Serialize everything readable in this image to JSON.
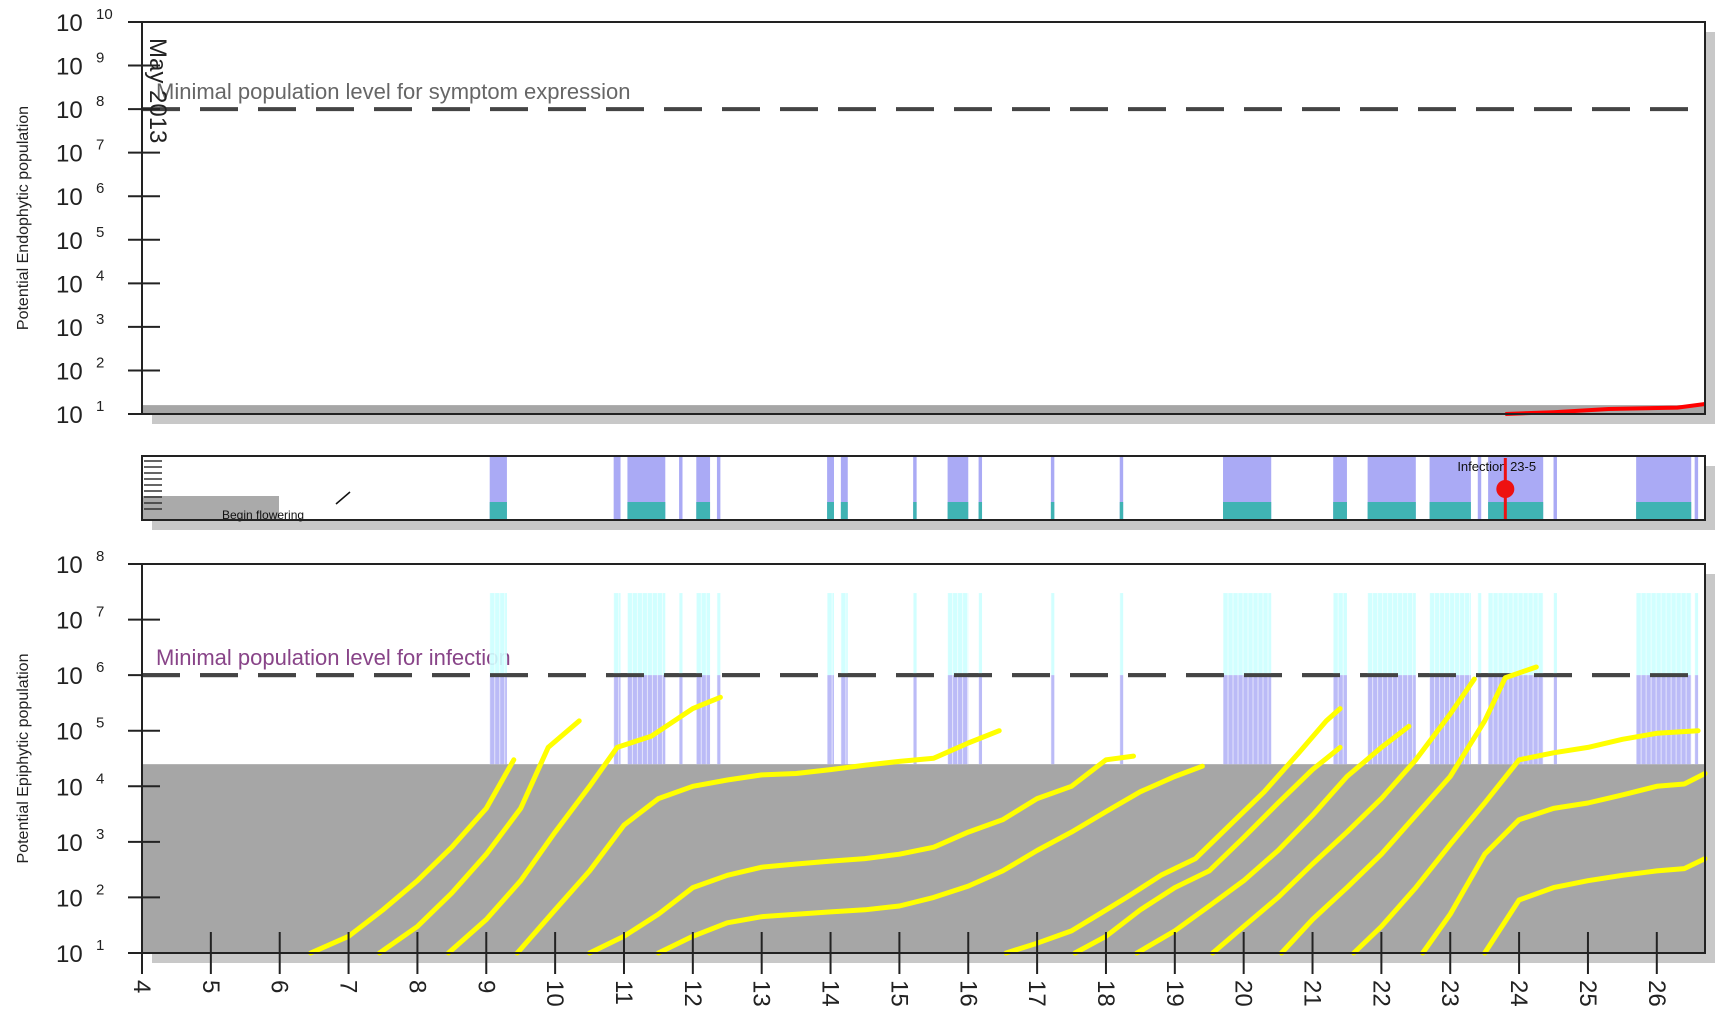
{
  "chart_data": [
    {
      "type": "line",
      "ylabel": "Potential Endophytic population",
      "yscale": "log",
      "ylim": [
        10,
        10000000000
      ],
      "ytick_exponents": [
        1,
        2,
        3,
        4,
        5,
        6,
        7,
        8,
        9,
        10
      ],
      "ytick_base": "10",
      "xlim": [
        4,
        26.7
      ],
      "month_label": "May 2013",
      "background_band": {
        "range": [
          10,
          16
        ],
        "color": "#a6a6a6"
      },
      "threshold": {
        "value": 100000000,
        "label": "Minimal population level for symptom expression",
        "label_color": "#666666"
      },
      "series": [
        {
          "color": "#ff0000",
          "points": [
            [
              23.8,
              10
            ],
            [
              24.5,
              11
            ],
            [
              25.3,
              13
            ],
            [
              26.3,
              14
            ],
            [
              26.7,
              17
            ]
          ]
        }
      ]
    },
    {
      "type": "timeline",
      "annotations": {
        "begin_flowering": "Begin flowering",
        "infection": "Infection 23-5"
      },
      "infection_x": 23.8,
      "colors": {
        "wet": "#aaaaf5",
        "rain": "#40b3b3",
        "infection": "#ee1111",
        "flowering": "#aaaaaa"
      },
      "wet_periods": [
        [
          9.05,
          9.3
        ],
        [
          10.85,
          10.95
        ],
        [
          11.05,
          11.6
        ],
        [
          11.8,
          11.85
        ],
        [
          12.05,
          12.25
        ],
        [
          12.35,
          12.4
        ],
        [
          13.95,
          14.05
        ],
        [
          14.15,
          14.25
        ],
        [
          15.2,
          15.25
        ],
        [
          15.7,
          16.0
        ],
        [
          16.15,
          16.2
        ],
        [
          17.2,
          17.25
        ],
        [
          18.2,
          18.25
        ],
        [
          19.7,
          20.4
        ],
        [
          21.3,
          21.5
        ],
        [
          21.8,
          22.5
        ],
        [
          22.7,
          23.3
        ],
        [
          23.4,
          23.45
        ],
        [
          23.55,
          24.35
        ],
        [
          24.5,
          24.55
        ],
        [
          25.7,
          26.5
        ],
        [
          26.55,
          26.6
        ]
      ],
      "rain_periods": [
        [
          9.05,
          9.3
        ],
        [
          11.05,
          11.6
        ],
        [
          12.05,
          12.25
        ],
        [
          13.95,
          14.05
        ],
        [
          14.15,
          14.25
        ],
        [
          15.2,
          15.25
        ],
        [
          15.7,
          16.0
        ],
        [
          16.15,
          16.2
        ],
        [
          17.2,
          17.25
        ],
        [
          18.2,
          18.25
        ],
        [
          19.7,
          20.4
        ],
        [
          21.3,
          21.5
        ],
        [
          21.8,
          22.5
        ],
        [
          22.7,
          23.3
        ],
        [
          23.55,
          24.35
        ],
        [
          25.7,
          26.5
        ]
      ]
    },
    {
      "type": "line",
      "ylabel": "Potential Epiphytic population",
      "yscale": "log",
      "ylim": [
        10,
        100000000
      ],
      "ytick_exponents": [
        1,
        2,
        3,
        4,
        5,
        6,
        7,
        8
      ],
      "ytick_base": "10",
      "xlim": [
        4,
        26.7
      ],
      "xticks": [
        4,
        5,
        6,
        7,
        8,
        9,
        10,
        11,
        12,
        13,
        14,
        15,
        16,
        17,
        18,
        19,
        20,
        21,
        22,
        23,
        24,
        25,
        26
      ],
      "background_band": {
        "range": [
          10,
          25000
        ],
        "color": "#a6a6a6"
      },
      "threshold": {
        "value": 1000000,
        "label": "Minimal population level for infection",
        "label_color": "#884488"
      },
      "series_color": "#ffff00",
      "series": [
        {
          "points": [
            [
              6.45,
              10
            ],
            [
              7.0,
              20
            ],
            [
              7.5,
              60
            ],
            [
              8.0,
              200
            ],
            [
              8.5,
              800
            ],
            [
              9.0,
              4000
            ],
            [
              9.4,
              30000
            ]
          ]
        },
        {
          "points": [
            [
              7.45,
              10
            ],
            [
              8.0,
              30
            ],
            [
              8.5,
              120
            ],
            [
              9.0,
              600
            ],
            [
              9.5,
              4000
            ],
            [
              9.9,
              50000
            ],
            [
              10.35,
              150000
            ]
          ]
        },
        {
          "points": [
            [
              8.45,
              10
            ],
            [
              9.0,
              40
            ],
            [
              9.5,
              200
            ],
            [
              10.0,
              1500
            ],
            [
              10.5,
              10000
            ],
            [
              10.9,
              50000
            ],
            [
              11.4,
              80000
            ],
            [
              12.0,
              250000
            ],
            [
              12.4,
              400000
            ]
          ]
        },
        {
          "points": [
            [
              9.45,
              10
            ],
            [
              10.0,
              60
            ],
            [
              10.5,
              300
            ],
            [
              11.0,
              2000
            ],
            [
              11.5,
              6000
            ],
            [
              12.0,
              10000
            ],
            [
              12.5,
              13000
            ],
            [
              13.0,
              16000
            ],
            [
              13.5,
              17000
            ],
            [
              14.0,
              20000
            ],
            [
              14.5,
              24000
            ],
            [
              15.0,
              28000
            ],
            [
              15.5,
              32000
            ],
            [
              16.0,
              60000
            ],
            [
              16.45,
              100000
            ]
          ]
        },
        {
          "points": [
            [
              10.5,
              10
            ],
            [
              11.0,
              20
            ],
            [
              11.5,
              50
            ],
            [
              12.0,
              150
            ],
            [
              12.5,
              250
            ],
            [
              13.0,
              350
            ],
            [
              13.5,
              400
            ],
            [
              14.0,
              450
            ],
            [
              14.5,
              500
            ],
            [
              15.0,
              600
            ],
            [
              15.5,
              800
            ],
            [
              16.0,
              1500
            ],
            [
              16.5,
              2500
            ],
            [
              17.0,
              6000
            ],
            [
              17.5,
              10000
            ],
            [
              18.0,
              30000
            ],
            [
              18.4,
              35000
            ]
          ]
        },
        {
          "points": [
            [
              11.5,
              10
            ],
            [
              12.0,
              20
            ],
            [
              12.5,
              35
            ],
            [
              13.0,
              45
            ],
            [
              13.5,
              50
            ],
            [
              14.0,
              55
            ],
            [
              14.5,
              60
            ],
            [
              15.0,
              70
            ],
            [
              15.5,
              100
            ],
            [
              16.0,
              160
            ],
            [
              16.5,
              300
            ],
            [
              17.0,
              700
            ],
            [
              17.5,
              1500
            ],
            [
              18.0,
              3500
            ],
            [
              18.5,
              8000
            ],
            [
              19.0,
              15000
            ],
            [
              19.4,
              23000
            ]
          ]
        },
        {
          "points": [
            [
              16.55,
              10
            ],
            [
              17.0,
              15
            ],
            [
              17.5,
              25
            ],
            [
              17.9,
              50
            ],
            [
              18.3,
              100
            ],
            [
              18.8,
              250
            ],
            [
              19.3,
              500
            ],
            [
              19.8,
              2000
            ],
            [
              20.3,
              8000
            ],
            [
              20.8,
              40000
            ],
            [
              21.2,
              150000
            ],
            [
              21.4,
              250000
            ]
          ]
        },
        {
          "points": [
            [
              17.55,
              10
            ],
            [
              18.0,
              20
            ],
            [
              18.5,
              60
            ],
            [
              19.0,
              150
            ],
            [
              19.5,
              300
            ],
            [
              20.0,
              1200
            ],
            [
              20.5,
              5000
            ],
            [
              21.0,
              20000
            ],
            [
              21.4,
              50000
            ]
          ]
        },
        {
          "points": [
            [
              18.45,
              10
            ],
            [
              19.0,
              25
            ],
            [
              19.5,
              70
            ],
            [
              20.0,
              200
            ],
            [
              20.5,
              700
            ],
            [
              21.0,
              3000
            ],
            [
              21.5,
              15000
            ],
            [
              22.0,
              50000
            ],
            [
              22.4,
              120000
            ]
          ]
        },
        {
          "points": [
            [
              19.55,
              10
            ],
            [
              20.0,
              30
            ],
            [
              20.5,
              100
            ],
            [
              21.0,
              400
            ],
            [
              21.5,
              1500
            ],
            [
              22.0,
              6000
            ],
            [
              22.5,
              30000
            ],
            [
              23.0,
              200000
            ],
            [
              23.35,
              850000
            ]
          ]
        },
        {
          "points": [
            [
              20.55,
              10
            ],
            [
              21.0,
              40
            ],
            [
              21.5,
              150
            ],
            [
              22.0,
              600
            ],
            [
              22.5,
              3000
            ],
            [
              23.0,
              15000
            ],
            [
              23.5,
              150000
            ],
            [
              23.8,
              900000
            ],
            [
              24.25,
              1400000
            ]
          ]
        },
        {
          "points": [
            [
              21.6,
              10
            ],
            [
              22.0,
              30
            ],
            [
              22.5,
              150
            ],
            [
              23.0,
              900
            ],
            [
              23.5,
              5000
            ],
            [
              24.0,
              30000
            ],
            [
              24.5,
              40000
            ],
            [
              25.0,
              50000
            ],
            [
              25.5,
              70000
            ],
            [
              26.0,
              90000
            ],
            [
              26.6,
              100000
            ]
          ]
        },
        {
          "points": [
            [
              22.6,
              10
            ],
            [
              23.0,
              50
            ],
            [
              23.5,
              600
            ],
            [
              24.0,
              2500
            ],
            [
              24.5,
              4000
            ],
            [
              25.0,
              5000
            ],
            [
              25.5,
              7000
            ],
            [
              26.0,
              10000
            ],
            [
              26.4,
              11000
            ],
            [
              26.7,
              17000
            ]
          ]
        },
        {
          "points": [
            [
              23.5,
              10
            ],
            [
              24.0,
              90
            ],
            [
              24.5,
              150
            ],
            [
              25.0,
              200
            ],
            [
              25.5,
              250
            ],
            [
              26.0,
              300
            ],
            [
              26.4,
              330
            ],
            [
              26.7,
              500
            ]
          ]
        }
      ]
    }
  ]
}
